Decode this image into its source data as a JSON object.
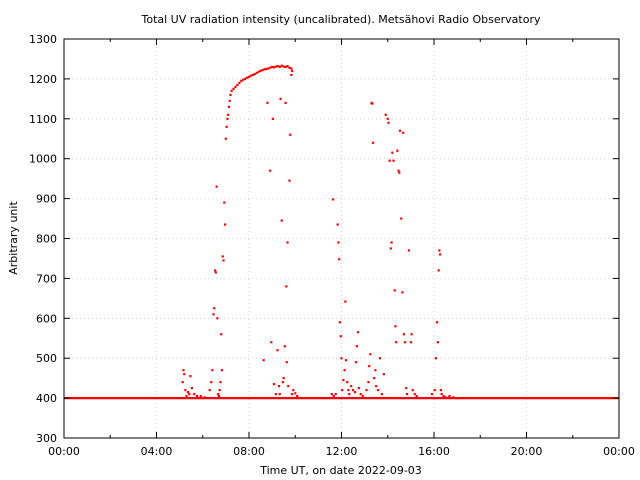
{
  "chart_data": {
    "type": "scatter",
    "title": "Total UV radiation intensity (uncalibrated). Metsähovi Radio Observatory",
    "xlabel": "Time UT, on date 2022-09-03",
    "ylabel": "Arbitrary unit",
    "xlim": [
      "00:00",
      "24:00"
    ],
    "ylim": [
      300,
      1300
    ],
    "xticks": [
      "00:00",
      "04:00",
      "08:00",
      "12:00",
      "16:00",
      "20:00",
      "00:00"
    ],
    "yticks": [
      300,
      400,
      500,
      600,
      700,
      800,
      900,
      1000,
      1100,
      1200,
      1300
    ],
    "grid": true,
    "marker_color": "#ff0000",
    "baseline_value": 400,
    "series": [
      {
        "points": [
          [
            "05:08",
            440
          ],
          [
            "05:10",
            470
          ],
          [
            "05:12",
            460
          ],
          [
            "05:15",
            420
          ],
          [
            "05:18",
            405
          ],
          [
            "05:22",
            415
          ],
          [
            "05:25",
            410
          ],
          [
            "05:28",
            455
          ],
          [
            "05:32",
            425
          ],
          [
            "05:38",
            410
          ],
          [
            "05:45",
            405
          ],
          [
            "05:55",
            405
          ],
          [
            "06:05",
            402
          ],
          [
            "06:18",
            420
          ],
          [
            "06:22",
            440
          ],
          [
            "06:25",
            470
          ],
          [
            "06:28",
            610
          ],
          [
            "06:30",
            625
          ],
          [
            "06:32",
            720
          ],
          [
            "06:34",
            715
          ],
          [
            "06:36",
            930
          ],
          [
            "06:38",
            600
          ],
          [
            "06:40",
            410
          ],
          [
            "06:42",
            405
          ],
          [
            "06:44",
            420
          ],
          [
            "06:46",
            440
          ],
          [
            "06:48",
            560
          ],
          [
            "06:50",
            470
          ],
          [
            "06:52",
            755
          ],
          [
            "06:54",
            745
          ],
          [
            "06:56",
            890
          ],
          [
            "06:58",
            835
          ],
          [
            "07:00",
            1050
          ],
          [
            "07:02",
            1080
          ],
          [
            "07:04",
            1100
          ],
          [
            "07:06",
            1110
          ],
          [
            "07:08",
            1130
          ],
          [
            "07:10",
            1145
          ],
          [
            "07:12",
            1160
          ],
          [
            "07:15",
            1170
          ],
          [
            "07:20",
            1175
          ],
          [
            "07:25",
            1180
          ],
          [
            "07:30",
            1185
          ],
          [
            "07:35",
            1190
          ],
          [
            "07:40",
            1195
          ],
          [
            "07:45",
            1198
          ],
          [
            "07:50",
            1200
          ],
          [
            "07:55",
            1203
          ],
          [
            "08:00",
            1205
          ],
          [
            "08:05",
            1208
          ],
          [
            "08:10",
            1210
          ],
          [
            "08:15",
            1212
          ],
          [
            "08:20",
            1215
          ],
          [
            "08:25",
            1218
          ],
          [
            "08:30",
            1220
          ],
          [
            "08:35",
            1222
          ],
          [
            "08:40",
            1224
          ],
          [
            "08:45",
            1225
          ],
          [
            "08:50",
            1226
          ],
          [
            "08:55",
            1228
          ],
          [
            "09:00",
            1230
          ],
          [
            "09:05",
            1229
          ],
          [
            "09:10",
            1231
          ],
          [
            "09:15",
            1232
          ],
          [
            "09:20",
            1230
          ],
          [
            "09:25",
            1233
          ],
          [
            "09:30",
            1231
          ],
          [
            "09:35",
            1230
          ],
          [
            "09:40",
            1232
          ],
          [
            "09:45",
            1228
          ],
          [
            "09:50",
            1226
          ],
          [
            "09:52",
            1220
          ],
          [
            "08:38",
            495
          ],
          [
            "08:48",
            1140
          ],
          [
            "08:55",
            970
          ],
          [
            "08:58",
            540
          ],
          [
            "09:02",
            1100
          ],
          [
            "09:05",
            435
          ],
          [
            "09:10",
            410
          ],
          [
            "09:14",
            520
          ],
          [
            "09:18",
            430
          ],
          [
            "09:20",
            410
          ],
          [
            "09:22",
            1150
          ],
          [
            "09:25",
            845
          ],
          [
            "09:28",
            440
          ],
          [
            "09:30",
            450
          ],
          [
            "09:33",
            530
          ],
          [
            "09:35",
            1140
          ],
          [
            "09:37",
            680
          ],
          [
            "09:38",
            490
          ],
          [
            "09:40",
            790
          ],
          [
            "09:42",
            430
          ],
          [
            "09:45",
            945
          ],
          [
            "09:47",
            1060
          ],
          [
            "09:50",
            1210
          ],
          [
            "09:52",
            410
          ],
          [
            "09:55",
            420
          ],
          [
            "10:00",
            412
          ],
          [
            "10:05",
            405
          ],
          [
            "11:35",
            410
          ],
          [
            "11:38",
            898
          ],
          [
            "11:40",
            405
          ],
          [
            "11:45",
            410
          ],
          [
            "11:50",
            835
          ],
          [
            "11:52",
            790
          ],
          [
            "11:54",
            748
          ],
          [
            "11:56",
            590
          ],
          [
            "11:58",
            555
          ],
          [
            "12:00",
            500
          ],
          [
            "12:02",
            420
          ],
          [
            "12:05",
            445
          ],
          [
            "12:08",
            470
          ],
          [
            "12:10",
            642
          ],
          [
            "12:12",
            495
          ],
          [
            "12:15",
            440
          ],
          [
            "12:18",
            420
          ],
          [
            "12:20",
            410
          ],
          [
            "12:25",
            430
          ],
          [
            "12:30",
            420
          ],
          [
            "12:35",
            415
          ],
          [
            "12:38",
            490
          ],
          [
            "12:40",
            530
          ],
          [
            "12:43",
            565
          ],
          [
            "12:45",
            425
          ],
          [
            "12:50",
            410
          ],
          [
            "12:55",
            405
          ],
          [
            "13:05",
            420
          ],
          [
            "13:10",
            440
          ],
          [
            "13:12",
            480
          ],
          [
            "13:15",
            510
          ],
          [
            "13:18",
            1140
          ],
          [
            "13:20",
            1138
          ],
          [
            "13:22",
            1040
          ],
          [
            "13:25",
            450
          ],
          [
            "13:28",
            470
          ],
          [
            "13:30",
            430
          ],
          [
            "13:35",
            420
          ],
          [
            "13:40",
            500
          ],
          [
            "13:45",
            410
          ],
          [
            "13:50",
            460
          ],
          [
            "13:55",
            1110
          ],
          [
            "14:00",
            1100
          ],
          [
            "14:02",
            1090
          ],
          [
            "14:05",
            995
          ],
          [
            "14:08",
            775
          ],
          [
            "14:10",
            790
          ],
          [
            "14:12",
            1015
          ],
          [
            "14:15",
            995
          ],
          [
            "14:18",
            670
          ],
          [
            "14:20",
            580
          ],
          [
            "14:22",
            540
          ],
          [
            "14:25",
            1020
          ],
          [
            "14:28",
            970
          ],
          [
            "14:30",
            965
          ],
          [
            "14:32",
            1070
          ],
          [
            "14:35",
            850
          ],
          [
            "14:38",
            665
          ],
          [
            "14:40",
            1065
          ],
          [
            "14:42",
            560
          ],
          [
            "14:45",
            540
          ],
          [
            "14:48",
            425
          ],
          [
            "14:50",
            410
          ],
          [
            "14:55",
            770
          ],
          [
            "15:00",
            540
          ],
          [
            "15:02",
            560
          ],
          [
            "15:05",
            420
          ],
          [
            "15:10",
            410
          ],
          [
            "15:15",
            405
          ],
          [
            "15:55",
            410
          ],
          [
            "16:02",
            420
          ],
          [
            "16:05",
            500
          ],
          [
            "16:08",
            590
          ],
          [
            "16:10",
            540
          ],
          [
            "16:12",
            720
          ],
          [
            "16:14",
            770
          ],
          [
            "16:16",
            760
          ],
          [
            "16:18",
            420
          ],
          [
            "16:20",
            410
          ],
          [
            "16:25",
            405
          ],
          [
            "16:30",
            402
          ],
          [
            "16:40",
            405
          ],
          [
            "16:50",
            402
          ],
          [
            "17:00",
            400
          ]
        ]
      }
    ]
  }
}
